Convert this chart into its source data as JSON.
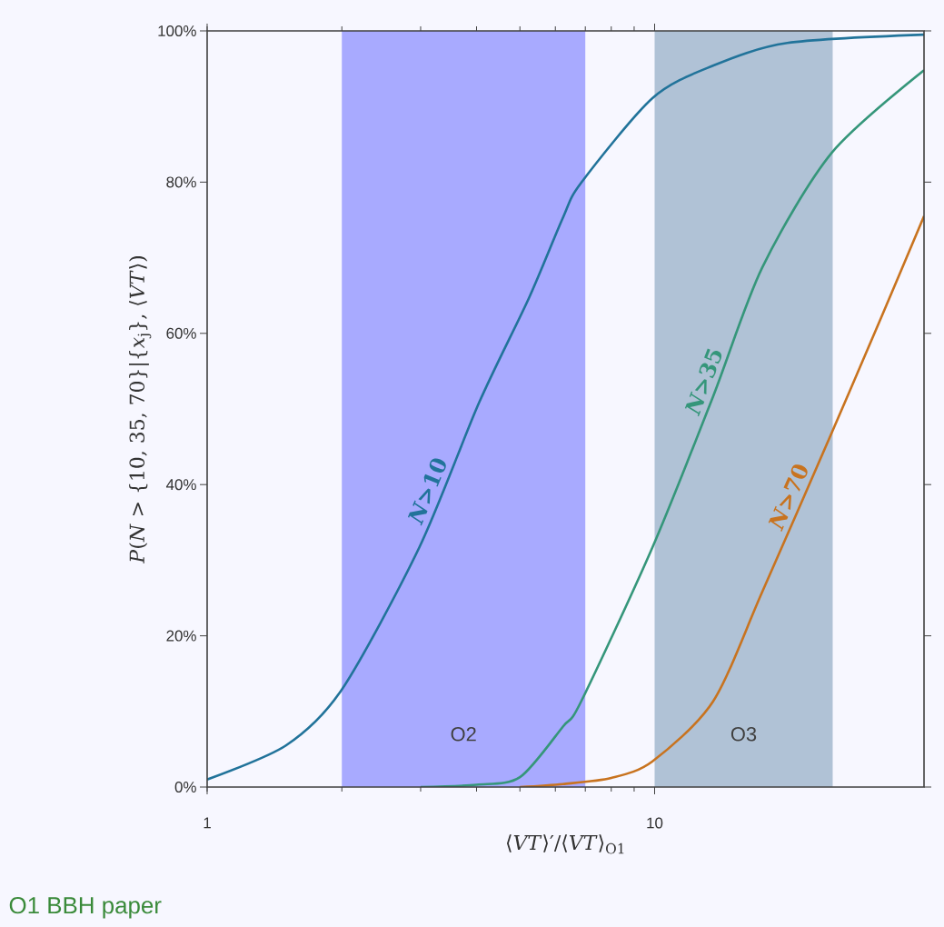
{
  "chart_data": {
    "type": "line",
    "xlabel": "⟨*VT*⟩′/⟨*VT*⟩$_{O1}$",
    "ylabel": "*P*(*N* > {10, 35, 70}|{*x*$_{j}$}, ⟨*VT*⟩)",
    "log": "x",
    "xlim": [
      1,
      40
    ],
    "xticks": [
      1,
      10
    ],
    "ylim": [
      0,
      100
    ],
    "yticks": [
      {
        "value": 0,
        "label": "0%"
      },
      {
        "value": 20,
        "label": "20%"
      },
      {
        "value": 40,
        "label": "40%"
      },
      {
        "value": 60,
        "label": "60%"
      },
      {
        "value": 80,
        "label": "80%"
      },
      {
        "value": 100,
        "label": "100%"
      }
    ],
    "grid": false,
    "legend": false,
    "marker": "none",
    "line_style": "solid",
    "bands": [
      {
        "axis": "x",
        "from": 2,
        "to": 7,
        "label": "O2",
        "color": "#a8aaff"
      },
      {
        "axis": "x",
        "from": 10,
        "to": 25,
        "label": "O3",
        "color": "#b0c2d6"
      }
    ],
    "series": [
      {
        "name": "*N*>10",
        "color": "#21739a",
        "x": [
          1,
          1.5,
          2,
          2.98,
          4.05,
          5.24,
          6.24,
          6.85,
          9.89,
          13.5,
          19.8,
          40
        ],
        "values": [
          1.0,
          5.5,
          12.9,
          31.7,
          50.8,
          64.7,
          75.3,
          79.9,
          91.1,
          95.4,
          98.4,
          99.5
        ]
      },
      {
        "name": "*N*>35",
        "color": "#35967a",
        "x": [
          3,
          4,
          5,
          6.24,
          6.85,
          9.89,
          13.5,
          17.4,
          24.9,
          40
        ],
        "values": [
          0,
          0.3,
          1.3,
          8.0,
          11.3,
          31.7,
          51.6,
          68.7,
          83.9,
          94.8
        ]
      },
      {
        "name": "*N*>70",
        "color": "#c8731f",
        "x": [
          5,
          6.24,
          8,
          9.89,
          13.5,
          17.4,
          24.9,
          32.1,
          40
        ],
        "values": [
          0,
          0.4,
          1.2,
          3.4,
          11.3,
          25.8,
          46.9,
          62.1,
          75.5
        ]
      }
    ],
    "annotations": [
      "O1 BBH paper"
    ]
  }
}
